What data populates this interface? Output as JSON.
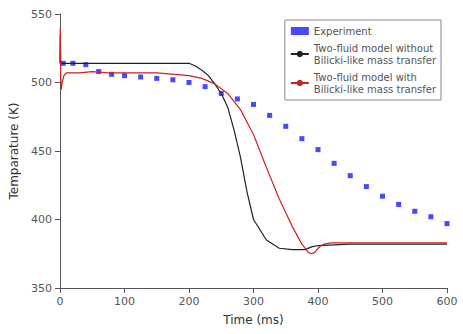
{
  "chart_data": {
    "type": "line",
    "xlabel": "Time (ms)",
    "ylabel": "Temparature (K)",
    "xlim": [
      0,
      600
    ],
    "ylim": [
      350,
      550
    ],
    "xticks": [
      0,
      100,
      200,
      300,
      400,
      500,
      600
    ],
    "yticks": [
      350,
      400,
      450,
      500,
      550
    ],
    "grid": false,
    "legend": "upper right",
    "series": [
      {
        "name": "Experiment",
        "type": "scatter",
        "marker": "square",
        "color": "#1a1aff",
        "x": [
          5,
          20,
          40,
          60,
          80,
          100,
          125,
          150,
          175,
          200,
          225,
          250,
          275,
          300,
          325,
          350,
          375,
          400,
          425,
          450,
          475,
          500,
          525,
          550,
          575,
          600
        ],
        "values": [
          514,
          514,
          513,
          508,
          506,
          505,
          504,
          503,
          502,
          500,
          497,
          492,
          488,
          484,
          476,
          468,
          459,
          451,
          441,
          432,
          424,
          417,
          411,
          406,
          402,
          397
        ]
      },
      {
        "name": "Two-fluid model without\nBilicki-like mass transfer",
        "type": "line",
        "line_style": "solid",
        "color": "#222222",
        "x": [
          0,
          0.5,
          1,
          2,
          3,
          5,
          10,
          20,
          50,
          100,
          150,
          200,
          210,
          220,
          230,
          240,
          250,
          260,
          270,
          280,
          290,
          300,
          320,
          340,
          360,
          370,
          380,
          390,
          400,
          450,
          500,
          600
        ],
        "values": [
          514,
          535,
          514,
          514,
          514,
          514,
          514,
          514,
          514,
          514,
          514,
          514,
          512,
          509,
          505,
          499,
          492,
          482,
          465,
          445,
          420,
          400,
          385,
          379,
          378,
          378,
          378,
          380,
          381,
          382,
          382,
          382
        ]
      },
      {
        "name": "Two-fluid model with\nBilicki-like mass transfer",
        "type": "line",
        "line_style": "solid",
        "color": "#cc2222",
        "x": [
          0,
          0.5,
          1,
          1.5,
          2,
          3,
          4,
          5,
          6,
          8,
          10,
          15,
          20,
          30,
          50,
          75,
          100,
          150,
          200,
          220,
          240,
          260,
          280,
          300,
          320,
          340,
          360,
          375,
          385,
          390,
          395,
          400,
          405,
          410,
          420,
          450,
          500,
          600
        ],
        "values": [
          514,
          540,
          510,
          497,
          495,
          499,
          501,
          503,
          505,
          506,
          507,
          507,
          507,
          507,
          508,
          507,
          507,
          507,
          505,
          503,
          499,
          492,
          480,
          462,
          438,
          415,
          395,
          382,
          376,
          375,
          376,
          379,
          381,
          382,
          383,
          383,
          383,
          383
        ]
      }
    ]
  }
}
